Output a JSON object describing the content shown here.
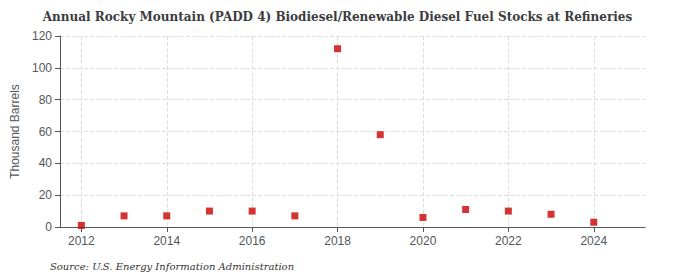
{
  "chart_data": {
    "type": "scatter",
    "title": "Annual Rocky Mountain (PADD 4) Biodiesel/Renewable Diesel Fuel Stocks at Refineries",
    "ylabel": "Thousand Barrels",
    "annotations": [
      "Source: U.S. Energy Information Administration"
    ],
    "x": [
      2012,
      2013,
      2014,
      2015,
      2016,
      2017,
      2018,
      2019,
      2020,
      2021,
      2022,
      2023,
      2024
    ],
    "values": [
      1,
      7,
      7,
      10,
      10,
      7,
      112,
      58,
      6,
      11,
      10,
      8,
      3
    ],
    "color": "#cc0000",
    "marker": "square",
    "xlim": [
      2011.5,
      2025.2
    ],
    "ylim": [
      0,
      120
    ],
    "xticks": [
      2012,
      2014,
      2016,
      2018,
      2020,
      2022,
      2024
    ],
    "yticks": [
      0,
      20,
      40,
      60,
      80,
      100,
      120
    ],
    "grid": true
  }
}
